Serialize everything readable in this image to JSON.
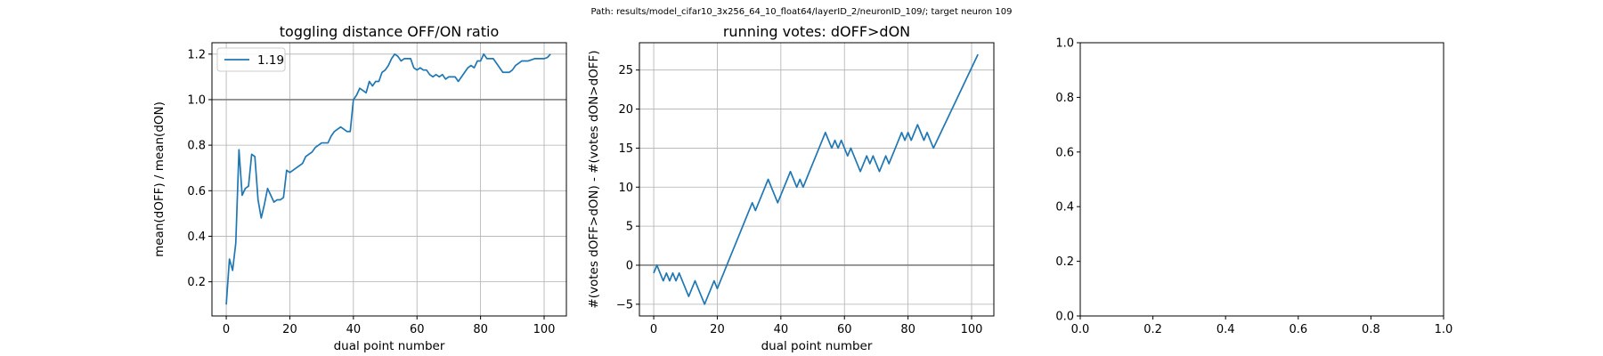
{
  "suptitle": "Path: results/model_cifar10_3x256_64_10_float64/layerID_2/neuronID_109/; target neuron 109",
  "colors": {
    "line": "#1f77b4",
    "refline": "#808080",
    "grid": "#b0b0b0"
  },
  "chart_data": [
    {
      "type": "line",
      "title": "toggling distance OFF/ON ratio",
      "xlabel": "dual point number",
      "ylabel": "mean(dOFF) / mean(dON)",
      "xlim": [
        -4.5,
        107
      ],
      "ylim": [
        0.05,
        1.25
      ],
      "xticks": [
        0,
        20,
        40,
        60,
        80,
        100
      ],
      "yticks": [
        0.2,
        0.4,
        0.6,
        0.8,
        1.0,
        1.2
      ],
      "grid": true,
      "legend": {
        "position": "top-left",
        "entries": [
          "1.19"
        ]
      },
      "reference_line": 1.0,
      "series": [
        {
          "name": "1.19",
          "x": [
            0,
            1,
            2,
            3,
            4,
            5,
            6,
            7,
            8,
            9,
            10,
            11,
            12,
            13,
            14,
            15,
            16,
            17,
            18,
            19,
            20,
            21,
            22,
            23,
            24,
            25,
            26,
            27,
            28,
            29,
            30,
            31,
            32,
            33,
            34,
            35,
            36,
            37,
            38,
            39,
            40,
            41,
            42,
            43,
            44,
            45,
            46,
            47,
            48,
            49,
            50,
            51,
            52,
            53,
            54,
            55,
            56,
            57,
            58,
            59,
            60,
            61,
            62,
            63,
            64,
            65,
            66,
            67,
            68,
            69,
            70,
            71,
            72,
            73,
            74,
            75,
            76,
            77,
            78,
            79,
            80,
            81,
            82,
            83,
            84,
            85,
            86,
            87,
            88,
            89,
            90,
            91,
            92,
            93,
            94,
            95,
            96,
            97,
            98,
            99,
            100,
            101,
            102
          ],
          "y": [
            0.1,
            0.3,
            0.25,
            0.37,
            0.78,
            0.58,
            0.61,
            0.62,
            0.76,
            0.75,
            0.56,
            0.48,
            0.54,
            0.61,
            0.58,
            0.55,
            0.56,
            0.56,
            0.57,
            0.69,
            0.68,
            0.69,
            0.7,
            0.71,
            0.72,
            0.75,
            0.76,
            0.77,
            0.79,
            0.8,
            0.81,
            0.81,
            0.81,
            0.84,
            0.86,
            0.87,
            0.88,
            0.87,
            0.86,
            0.86,
            1.0,
            1.02,
            1.05,
            1.04,
            1.03,
            1.08,
            1.06,
            1.08,
            1.08,
            1.12,
            1.13,
            1.15,
            1.18,
            1.2,
            1.19,
            1.17,
            1.18,
            1.18,
            1.18,
            1.14,
            1.13,
            1.14,
            1.13,
            1.13,
            1.11,
            1.1,
            1.11,
            1.1,
            1.11,
            1.09,
            1.1,
            1.1,
            1.1,
            1.08,
            1.1,
            1.12,
            1.14,
            1.15,
            1.14,
            1.17,
            1.17,
            1.2,
            1.18,
            1.18,
            1.18,
            1.16,
            1.14,
            1.12,
            1.12,
            1.12,
            1.13,
            1.15,
            1.16,
            1.17,
            1.17,
            1.17,
            1.175,
            1.18,
            1.18,
            1.18,
            1.18,
            1.185,
            1.2
          ]
        }
      ]
    },
    {
      "type": "line",
      "title": "running votes: dOFF>dON",
      "xlabel": "dual point number",
      "ylabel": "#(votes dOFF>dON) - #(votes dON>dOFF)",
      "xlim": [
        -4.5,
        107
      ],
      "ylim": [
        -6.5,
        28.5
      ],
      "xticks": [
        0,
        20,
        40,
        60,
        80,
        100
      ],
      "yticks": [
        -5,
        0,
        5,
        10,
        15,
        20,
        25
      ],
      "grid": true,
      "reference_line": 0,
      "series": [
        {
          "x": [
            0,
            1,
            2,
            3,
            4,
            5,
            6,
            7,
            8,
            9,
            10,
            11,
            12,
            13,
            14,
            15,
            16,
            17,
            18,
            19,
            20,
            21,
            22,
            23,
            24,
            25,
            26,
            27,
            28,
            29,
            30,
            31,
            32,
            33,
            34,
            35,
            36,
            37,
            38,
            39,
            40,
            41,
            42,
            43,
            44,
            45,
            46,
            47,
            48,
            49,
            50,
            51,
            52,
            53,
            54,
            55,
            56,
            57,
            58,
            59,
            60,
            61,
            62,
            63,
            64,
            65,
            66,
            67,
            68,
            69,
            70,
            71,
            72,
            73,
            74,
            75,
            76,
            77,
            78,
            79,
            80,
            81,
            82,
            83,
            84,
            85,
            86,
            87,
            88,
            102
          ],
          "y": [
            -1,
            0,
            -1,
            -2,
            -1,
            -2,
            -1,
            -2,
            -1,
            -2,
            -3,
            -4,
            -3,
            -2,
            -3,
            -4,
            -5,
            -4,
            -3,
            -2,
            -3,
            -2,
            -1,
            0,
            1,
            2,
            3,
            4,
            5,
            6,
            7,
            8,
            7,
            8,
            9,
            10,
            11,
            10,
            9,
            8,
            9,
            10,
            11,
            12,
            11,
            10,
            11,
            10,
            11,
            12,
            13,
            14,
            15,
            16,
            17,
            16,
            15,
            16,
            15,
            16,
            15,
            14,
            15,
            14,
            13,
            12,
            13,
            14,
            13,
            14,
            13,
            12,
            13,
            14,
            13,
            14,
            15,
            16,
            17,
            16,
            17,
            16,
            17,
            18,
            17,
            16,
            17,
            16,
            15,
            27
          ]
        }
      ]
    },
    {
      "type": "line",
      "title": "",
      "xlabel": "",
      "ylabel": "",
      "xlim": [
        0,
        1
      ],
      "ylim": [
        0,
        1
      ],
      "xticks": [
        0.0,
        0.2,
        0.4,
        0.6,
        0.8,
        1.0
      ],
      "yticks": [
        0.0,
        0.2,
        0.4,
        0.6,
        0.8,
        1.0
      ],
      "grid": false,
      "series": []
    }
  ]
}
